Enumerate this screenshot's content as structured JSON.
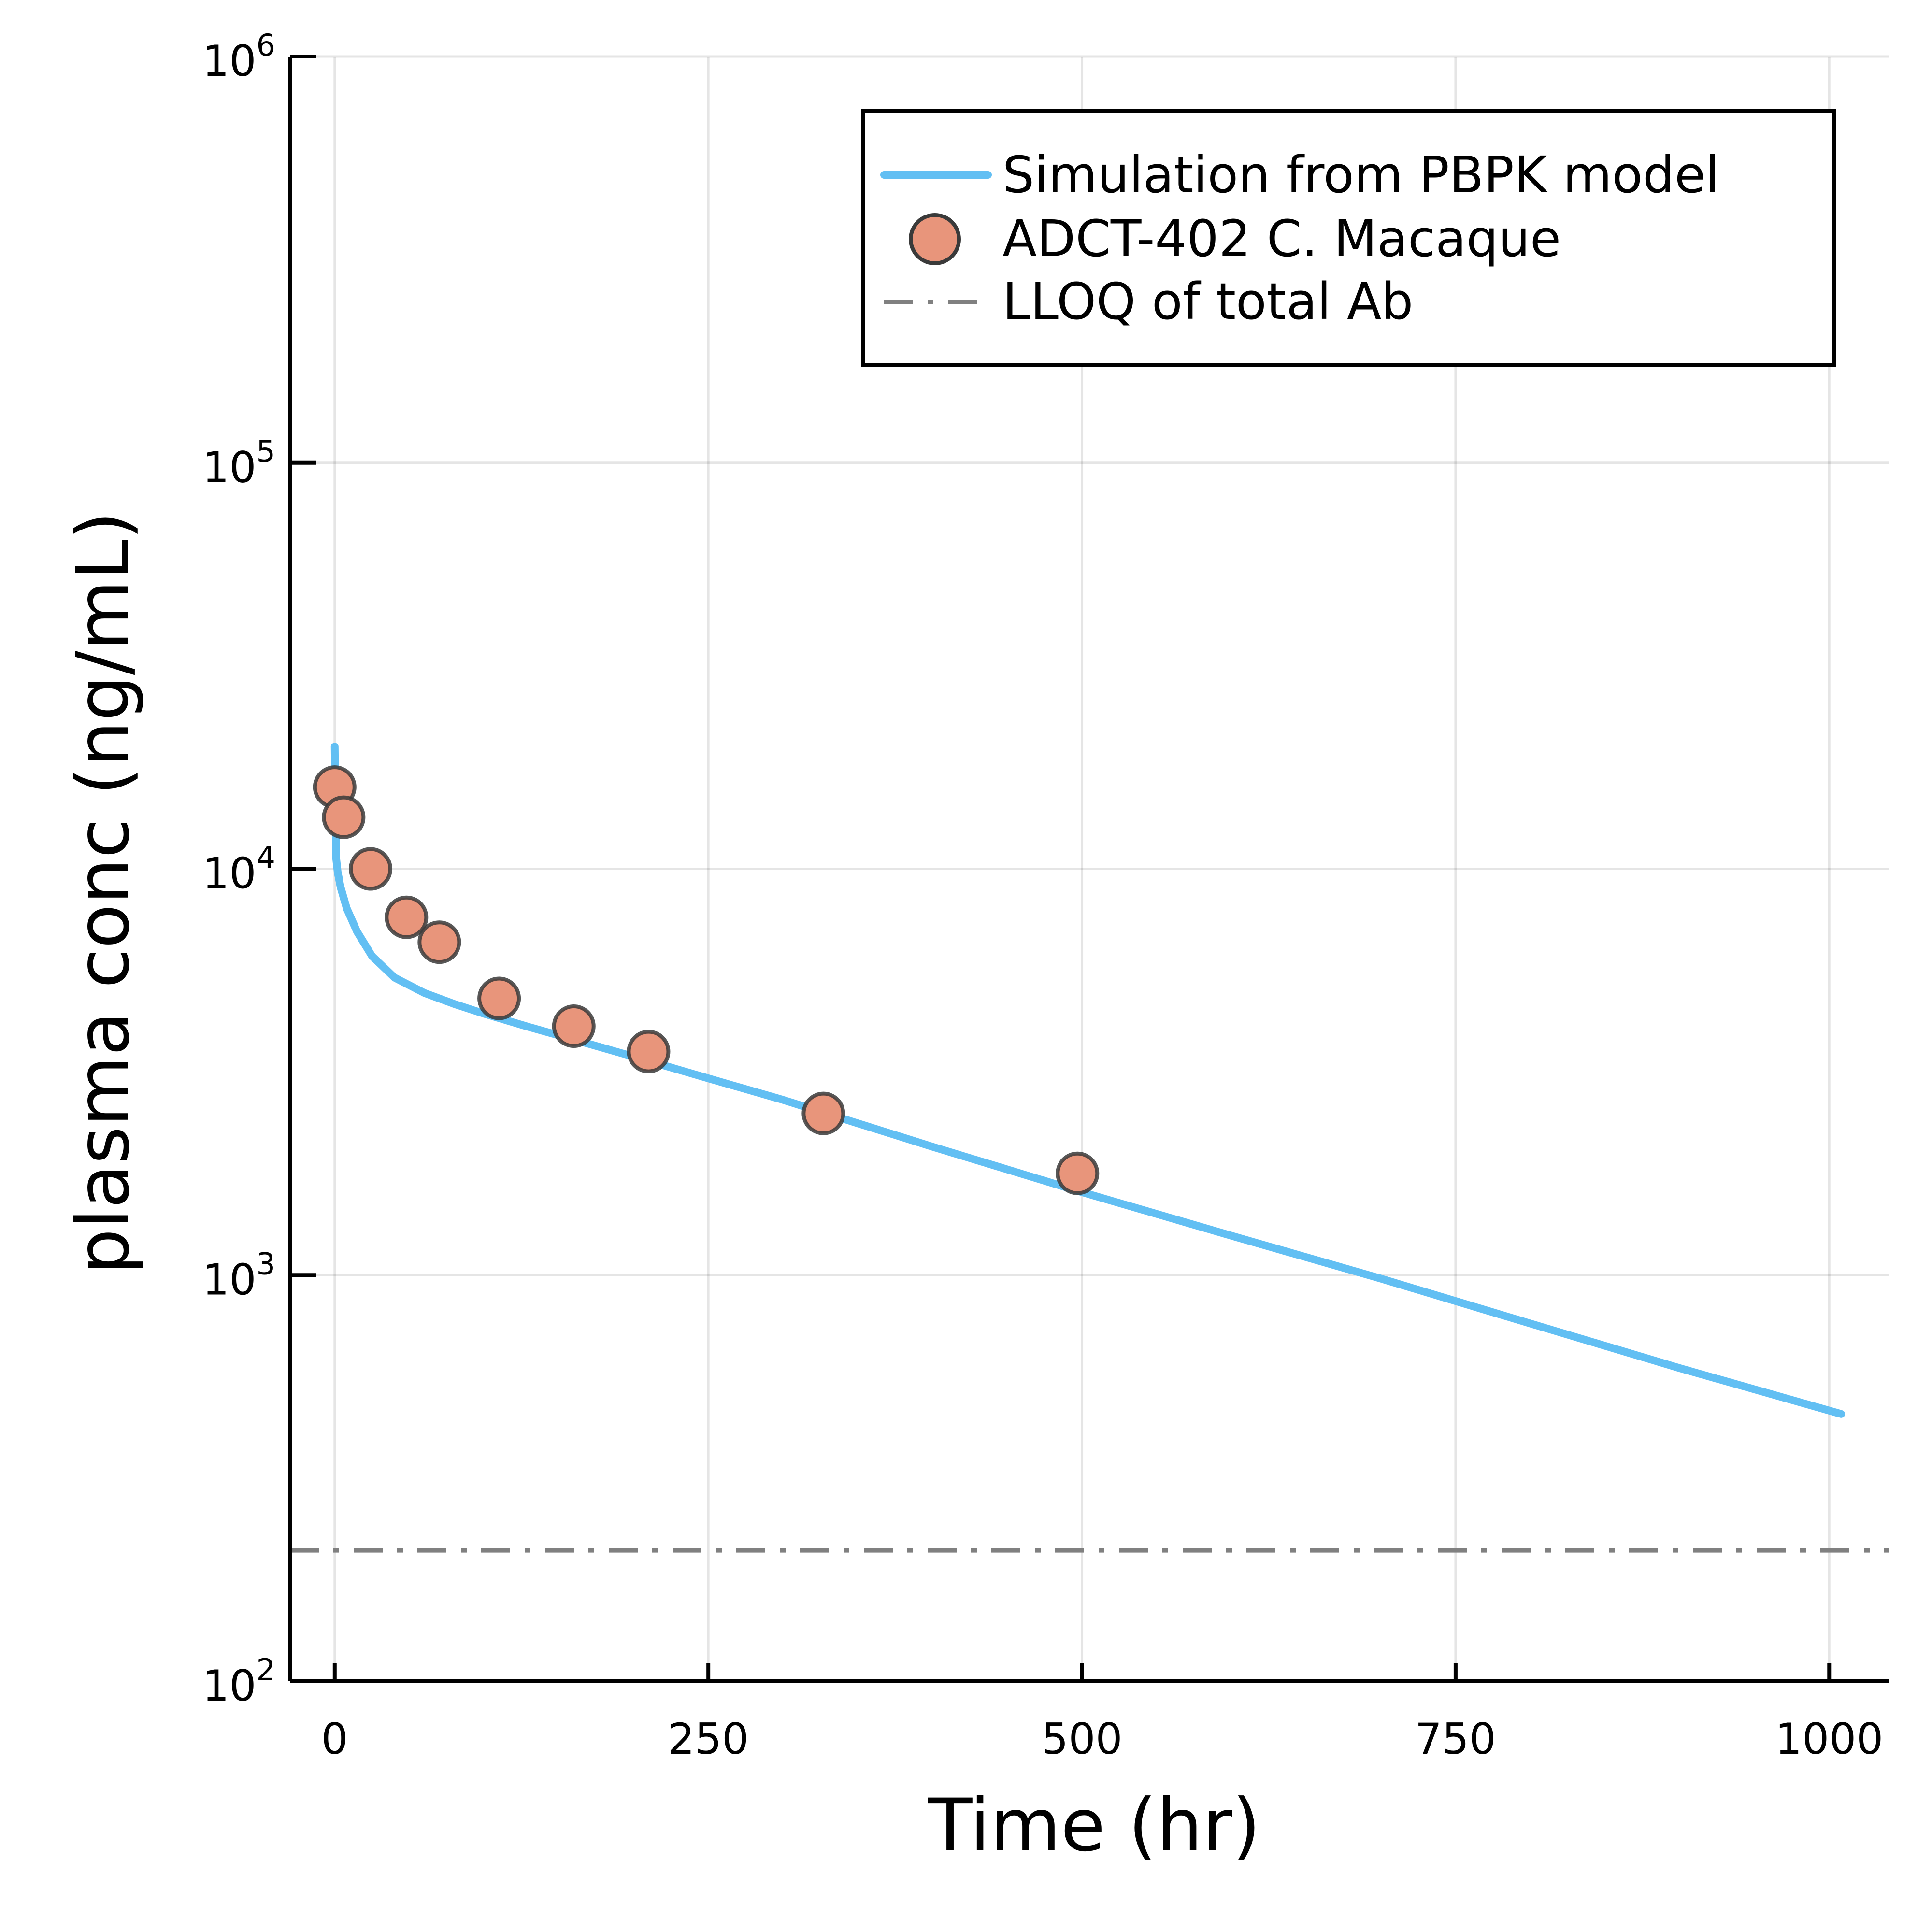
{
  "chart_data": {
    "type": "line",
    "xlabel": "Time (hr)",
    "ylabel": "plasma conc (ng/mL)",
    "xlim": [
      -30,
      1040
    ],
    "ylim": [
      100,
      1000000
    ],
    "yscale": "log",
    "grid": true,
    "legend_position": "top-right",
    "x_ticks": [
      {
        "value": 0,
        "label": "0"
      },
      {
        "value": 250,
        "label": "250"
      },
      {
        "value": 500,
        "label": "500"
      },
      {
        "value": 750,
        "label": "750"
      },
      {
        "value": 1000,
        "label": "1000"
      }
    ],
    "y_ticks": [
      {
        "value": 100,
        "base": "10",
        "exp": "2"
      },
      {
        "value": 1000,
        "base": "10",
        "exp": "3"
      },
      {
        "value": 10000,
        "base": "10",
        "exp": "4"
      },
      {
        "value": 100000,
        "base": "10",
        "exp": "5"
      },
      {
        "value": 1000000,
        "base": "10",
        "exp": "6"
      }
    ],
    "series": [
      {
        "name": "Simulation from PBPK model",
        "kind": "line",
        "color": "#62bff3",
        "x": [
          0,
          0.5,
          1,
          2,
          4,
          8,
          15,
          25,
          40,
          60,
          80,
          100,
          130,
          160,
          200,
          250,
          300,
          400,
          500,
          600,
          700,
          800,
          900,
          1008
        ],
        "y": [
          20000,
          13500,
          10600,
          9800,
          9000,
          8000,
          7000,
          6100,
          5400,
          4950,
          4650,
          4400,
          4080,
          3800,
          3450,
          3050,
          2700,
          2070,
          1600,
          1250,
          980,
          760,
          590,
          455
        ]
      },
      {
        "name": "ADCT-402 C. Macaque",
        "kind": "scatter",
        "color": "#e8957b",
        "edge_color": "#3a3a3a",
        "x": [
          0,
          6,
          24,
          48,
          70,
          110,
          160,
          210,
          327,
          497
        ],
        "y": [
          15900,
          13400,
          10000,
          7600,
          6600,
          4800,
          4100,
          3550,
          2500,
          1780
        ]
      },
      {
        "name": "LLOQ of total Ab",
        "kind": "hline",
        "color": "#808080",
        "y": 210
      }
    ]
  }
}
